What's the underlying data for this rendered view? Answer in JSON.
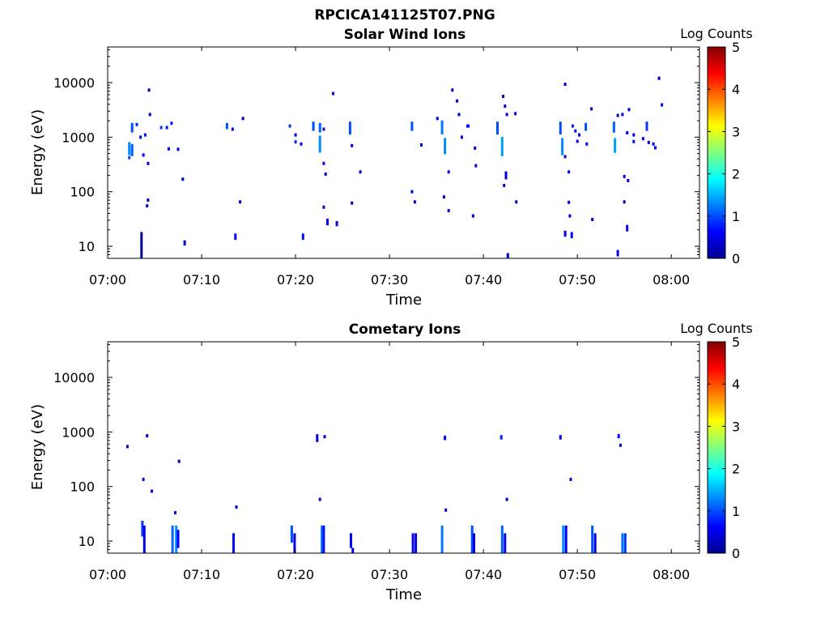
{
  "figure": {
    "title": "RPCICA141125T07.PNG"
  },
  "colors": {
    "colormap": [
      "#00008f",
      "#0000ff",
      "#0080ff",
      "#00ffff",
      "#80ff80",
      "#ffff00",
      "#ff8000",
      "#ff0000",
      "#800000"
    ],
    "ink": "#000000"
  },
  "chart_data": [
    {
      "type": "heatmap",
      "title": "Solar Wind Ions",
      "xlabel": "Time",
      "ylabel": "Energy (eV)",
      "yscale": "log",
      "xlim": [
        "07:00",
        "08:03"
      ],
      "ylim": [
        6,
        45000
      ],
      "x_ticks": [
        "07:00",
        "07:10",
        "07:20",
        "07:30",
        "07:40",
        "07:50",
        "08:00"
      ],
      "y_ticks": [
        "10",
        "100",
        "1000",
        "10000"
      ],
      "colorbar": {
        "label": "Log Counts",
        "range": [
          0,
          5
        ],
        "ticks": [
          "0",
          "1",
          "2",
          "3",
          "4",
          "5"
        ]
      },
      "cells": [
        [
          "07:02.3",
          420,
          420,
          1.0
        ],
        [
          "07:02.3",
          500,
          760,
          1.3
        ],
        [
          "07:02.6",
          480,
          700,
          1.1
        ],
        [
          "07:02.6",
          1300,
          1700,
          1.0
        ],
        [
          "07:03.1",
          1700,
          1700,
          0.8
        ],
        [
          "07:03.6",
          6,
          17,
          0.1
        ],
        [
          "07:03.5",
          1000,
          1000,
          0.5
        ],
        [
          "07:03.8",
          470,
          470,
          0.6
        ],
        [
          "07:04.0",
          1100,
          1100,
          0.7
        ],
        [
          "07:04.4",
          7300,
          7300,
          0.3
        ],
        [
          "07:04.5",
          2600,
          2600,
          0.3
        ],
        [
          "07:04.3",
          330,
          330,
          0.4
        ],
        [
          "07:04.3",
          70,
          70,
          0.4
        ],
        [
          "07:04.2",
          55,
          55,
          0.3
        ],
        [
          "07:05.7",
          1500,
          1500,
          0.9
        ],
        [
          "07:06.3",
          1500,
          1500,
          0.7
        ],
        [
          "07:06.8",
          1800,
          1800,
          0.7
        ],
        [
          "07:06.5",
          610,
          610,
          0.5
        ],
        [
          "07:07.5",
          600,
          600,
          0.5
        ],
        [
          "07:08.0",
          170,
          170,
          0.5
        ],
        [
          "07:08.2",
          11,
          12,
          0.3
        ],
        [
          "07:12.7",
          1500,
          1700,
          1.0
        ],
        [
          "07:13.3",
          1400,
          1400,
          0.6
        ],
        [
          "07:13.6",
          14,
          16,
          0.6
        ],
        [
          "07:14.1",
          65,
          65,
          0.4
        ],
        [
          "07:14.4",
          2200,
          2200,
          0.3
        ],
        [
          "07:19.4",
          1600,
          1600,
          0.9
        ],
        [
          "07:20.0",
          1100,
          1100,
          0.5
        ],
        [
          "07:20.0",
          820,
          820,
          0.8
        ],
        [
          "07:20.6",
          750,
          750,
          0.6
        ],
        [
          "07:20.8",
          14,
          16,
          0.7
        ],
        [
          "07:21.9",
          1400,
          1800,
          1.0
        ],
        [
          "07:22.6",
          560,
          1000,
          1.3
        ],
        [
          "07:22.6",
          1300,
          1700,
          1.1
        ],
        [
          "07:23.0",
          1400,
          1400,
          0.7
        ],
        [
          "07:23.0",
          330,
          330,
          0.5
        ],
        [
          "07:23.0",
          52,
          52,
          0.4
        ],
        [
          "07:23.2",
          210,
          210,
          0.5
        ],
        [
          "07:23.4",
          26,
          30,
          0.5
        ],
        [
          "07:24.0",
          6300,
          6300,
          0.4
        ],
        [
          "07:24.4",
          25,
          27,
          0.4
        ],
        [
          "07:25.8",
          1200,
          1800,
          1.0
        ],
        [
          "07:26.0",
          700,
          700,
          0.5
        ],
        [
          "07:26.0",
          62,
          62,
          0.4
        ],
        [
          "07:26.9",
          230,
          230,
          0.5
        ],
        [
          "07:32.4",
          1400,
          1800,
          1.0
        ],
        [
          "07:32.4",
          100,
          100,
          0.5
        ],
        [
          "07:32.7",
          65,
          65,
          0.4
        ],
        [
          "07:33.4",
          720,
          720,
          0.5
        ],
        [
          "07:35.1",
          2200,
          2200,
          0.5
        ],
        [
          "07:35.6",
          1200,
          1900,
          1.2
        ],
        [
          "07:35.9",
          520,
          900,
          1.3
        ],
        [
          "07:35.8",
          80,
          80,
          0.4
        ],
        [
          "07:36.3",
          230,
          230,
          0.5
        ],
        [
          "07:36.3",
          45,
          45,
          0.4
        ],
        [
          "07:36.7",
          7300,
          7300,
          0.3
        ],
        [
          "07:37.2",
          4600,
          4600,
          0.4
        ],
        [
          "07:37.4",
          2600,
          2600,
          0.4
        ],
        [
          "07:37.7",
          1000,
          1000,
          0.5
        ],
        [
          "07:38.3",
          1600,
          1600,
          0.7
        ],
        [
          "07:38.4",
          1600,
          1600,
          0.7
        ],
        [
          "07:38.9",
          36,
          36,
          0.4
        ],
        [
          "07:39.1",
          630,
          630,
          0.5
        ],
        [
          "07:39.2",
          300,
          300,
          0.4
        ],
        [
          "07:41.5",
          1200,
          1800,
          1.0
        ],
        [
          "07:42.0",
          480,
          950,
          1.4
        ],
        [
          "07:42.1",
          5600,
          5600,
          0.3
        ],
        [
          "07:42.3",
          3700,
          3700,
          0.4
        ],
        [
          "07:42.5",
          2600,
          2600,
          0.4
        ],
        [
          "07:42.4",
          180,
          220,
          0.5
        ],
        [
          "07:42.2",
          130,
          130,
          0.4
        ],
        [
          "07:42.6",
          6,
          7,
          0.3
        ],
        [
          "07:43.4",
          2700,
          2700,
          0.4
        ],
        [
          "07:43.5",
          65,
          65,
          0.3
        ],
        [
          "07:48.2",
          1200,
          1800,
          1.0
        ],
        [
          "07:48.4",
          500,
          900,
          1.3
        ],
        [
          "07:48.7",
          9300,
          9300,
          0.3
        ],
        [
          "07:48.7",
          440,
          440,
          0.4
        ],
        [
          "07:48.7",
          16,
          18,
          0.5
        ],
        [
          "07:49.1",
          230,
          230,
          0.5
        ],
        [
          "07:49.1",
          64,
          64,
          0.4
        ],
        [
          "07:49.2",
          36,
          36,
          0.5
        ],
        [
          "07:49.4",
          15,
          17,
          0.6
        ],
        [
          "07:49.5",
          1600,
          1600,
          0.8
        ],
        [
          "07:49.8",
          1300,
          1300,
          0.7
        ],
        [
          "07:50.0",
          840,
          840,
          0.6
        ],
        [
          "07:50.2",
          1100,
          1100,
          0.6
        ],
        [
          "07:50.9",
          1400,
          1700,
          1.0
        ],
        [
          "07:51.0",
          750,
          750,
          0.6
        ],
        [
          "07:51.5",
          3300,
          3300,
          0.4
        ],
        [
          "07:51.6",
          31,
          31,
          0.5
        ],
        [
          "07:53.9",
          1300,
          1800,
          1.1
        ],
        [
          "07:54.0",
          550,
          900,
          1.4
        ],
        [
          "07:54.3",
          7,
          8,
          0.4
        ],
        [
          "07:54.3",
          2500,
          2500,
          0.4
        ],
        [
          "07:54.8",
          2600,
          2600,
          0.5
        ],
        [
          "07:55.0",
          190,
          190,
          0.5
        ],
        [
          "07:55.0",
          65,
          65,
          0.4
        ],
        [
          "07:55.3",
          20,
          23,
          0.6
        ],
        [
          "07:55.3",
          1200,
          1200,
          0.6
        ],
        [
          "07:55.4",
          160,
          160,
          0.5
        ],
        [
          "07:55.5",
          3200,
          3200,
          0.4
        ],
        [
          "07:56.0",
          1100,
          1100,
          0.5
        ],
        [
          "07:56.0",
          830,
          830,
          0.5
        ],
        [
          "07:57.4",
          1400,
          1800,
          0.9
        ],
        [
          "07:57.6",
          800,
          800,
          0.5
        ],
        [
          "07:57.0",
          940,
          940,
          0.5
        ],
        [
          "07:58.1",
          750,
          750,
          0.5
        ],
        [
          "07:58.3",
          640,
          640,
          0.5
        ],
        [
          "07:58.7",
          12000,
          12000,
          0.3
        ],
        [
          "07:59.0",
          3900,
          3900,
          0.4
        ]
      ]
    },
    {
      "type": "heatmap",
      "title": "Cometary Ions",
      "xlabel": "Time",
      "ylabel": "Energy (eV)",
      "yscale": "log",
      "xlim": [
        "07:00",
        "08:03"
      ],
      "ylim": [
        6,
        45000
      ],
      "x_ticks": [
        "07:00",
        "07:10",
        "07:20",
        "07:30",
        "07:40",
        "07:50",
        "08:00"
      ],
      "y_ticks": [
        "10",
        "100",
        "1000",
        "10000"
      ],
      "colorbar": {
        "label": "Log Counts",
        "range": [
          0,
          5
        ],
        "ticks": [
          "0",
          "1",
          "2",
          "3",
          "4",
          "5"
        ]
      },
      "cells": [
        [
          "07:02.1",
          540,
          540,
          0.3
        ],
        [
          "07:03.7",
          13,
          22,
          0.9
        ],
        [
          "07:03.9",
          6,
          18,
          0.5
        ],
        [
          "07:03.8",
          135,
          135,
          0.4
        ],
        [
          "07:04.2",
          850,
          850,
          0.4
        ],
        [
          "07:04.7",
          82,
          82,
          0.5
        ],
        [
          "07:06.9",
          6,
          18,
          1.1
        ],
        [
          "07:07.2",
          33,
          33,
          0.5
        ],
        [
          "07:07.3",
          6,
          18,
          1.3
        ],
        [
          "07:07.5",
          8,
          15,
          0.6
        ],
        [
          "07:07.6",
          290,
          290,
          0.3
        ],
        [
          "07:13.4",
          6,
          13,
          0.6
        ],
        [
          "07:13.7",
          42,
          42,
          0.4
        ],
        [
          "07:19.6",
          10,
          18,
          1.0
        ],
        [
          "07:19.9",
          6,
          13,
          0.5
        ],
        [
          "07:22.3",
          700,
          850,
          0.4
        ],
        [
          "07:22.6",
          58,
          58,
          0.3
        ],
        [
          "07:22.8",
          6,
          18,
          1.2
        ],
        [
          "07:23.0",
          6,
          18,
          0.7
        ],
        [
          "07:23.1",
          820,
          820,
          0.4
        ],
        [
          "07:25.9",
          8,
          13,
          0.6
        ],
        [
          "07:26.1",
          6,
          7,
          0.5
        ],
        [
          "07:32.5",
          6,
          13,
          0.6
        ],
        [
          "07:32.8",
          6,
          13,
          0.5
        ],
        [
          "07:35.6",
          6,
          18,
          1.2
        ],
        [
          "07:35.9",
          760,
          800,
          0.6
        ],
        [
          "07:36.0",
          37,
          37,
          0.5
        ],
        [
          "07:38.8",
          6,
          18,
          1.0
        ],
        [
          "07:39.0",
          6,
          13,
          0.5
        ],
        [
          "07:41.9",
          780,
          820,
          0.8
        ],
        [
          "07:42.0",
          6,
          18,
          1.1
        ],
        [
          "07:42.3",
          6,
          13,
          0.6
        ],
        [
          "07:42.5",
          58,
          58,
          0.4
        ],
        [
          "07:48.2",
          780,
          820,
          0.6
        ],
        [
          "07:48.5",
          6,
          18,
          1.3
        ],
        [
          "07:48.8",
          6,
          18,
          0.6
        ],
        [
          "07:49.3",
          135,
          135,
          0.4
        ],
        [
          "07:51.6",
          6,
          18,
          1.0
        ],
        [
          "07:51.9",
          6,
          13,
          0.5
        ],
        [
          "07:54.4",
          820,
          860,
          0.7
        ],
        [
          "07:54.6",
          570,
          570,
          0.4
        ],
        [
          "07:54.8",
          6,
          13,
          1.2
        ],
        [
          "07:55.1",
          6,
          13,
          0.9
        ]
      ]
    }
  ]
}
